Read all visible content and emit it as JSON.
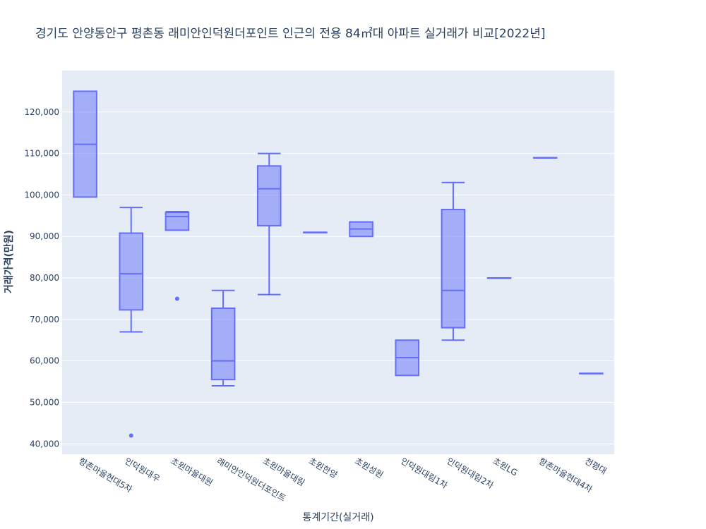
{
  "chart_data": {
    "type": "box",
    "title": "경기도 안양동안구 평촌동 래미안인덕원더포인트 인근의 전용 84㎡대 아파트 실거래가 비교[2022년]",
    "xlabel": "통계기간(실거래)",
    "ylabel": "거래가격(만원)",
    "ylim": [
      37500,
      130000
    ],
    "yticks": [
      40000,
      50000,
      60000,
      70000,
      80000,
      90000,
      100000,
      110000,
      120000
    ],
    "ytick_labels": [
      "40,000",
      "50,000",
      "60,000",
      "70,000",
      "80,000",
      "90,000",
      "100,000",
      "110,000",
      "120,000"
    ],
    "grid": true,
    "color": "#636efa",
    "fill": "rgba(99,110,250,0.5)",
    "background": "#e5ecf6",
    "boxes": [
      {
        "category": "향촌마을현대5차",
        "min": 99500,
        "q1": 99500,
        "median": 112200,
        "q3": 125000,
        "max": 125000,
        "outliers": []
      },
      {
        "category": "인덕원대우",
        "min": 67000,
        "q1": 72300,
        "median": 81000,
        "q3": 90800,
        "max": 97000,
        "outliers": [
          42000
        ]
      },
      {
        "category": "초원마을대원",
        "min": 91500,
        "q1": 91500,
        "median": 94800,
        "q3": 95800,
        "max": 96000,
        "outliers": [
          75000
        ]
      },
      {
        "category": "래미안인덕원더포인트",
        "min": 54000,
        "q1": 55500,
        "median": 60000,
        "q3": 72700,
        "max": 77000,
        "outliers": []
      },
      {
        "category": "초원마을대림",
        "min": 76000,
        "q1": 92600,
        "median": 101500,
        "q3": 107000,
        "max": 110000,
        "outliers": []
      },
      {
        "category": "초원한양",
        "min": 91000,
        "q1": 91000,
        "median": 91000,
        "q3": 91000,
        "max": 91000,
        "outliers": []
      },
      {
        "category": "초원성원",
        "min": 90000,
        "q1": 90000,
        "median": 91800,
        "q3": 93500,
        "max": 93500,
        "outliers": []
      },
      {
        "category": "인덕원대림1차",
        "min": 56500,
        "q1": 56500,
        "median": 60800,
        "q3": 65000,
        "max": 65000,
        "outliers": []
      },
      {
        "category": "인덕원대림2차",
        "min": 65000,
        "q1": 68000,
        "median": 77000,
        "q3": 96500,
        "max": 103000,
        "outliers": []
      },
      {
        "category": "초원LG",
        "min": 80000,
        "q1": 80000,
        "median": 80000,
        "q3": 80000,
        "max": 80000,
        "outliers": []
      },
      {
        "category": "향촌마을현대4차",
        "min": 109000,
        "q1": 109000,
        "median": 109000,
        "q3": 109000,
        "max": 109000,
        "outliers": []
      },
      {
        "category": "천평대",
        "min": 57000,
        "q1": 57000,
        "median": 57000,
        "q3": 57000,
        "max": 57000,
        "outliers": []
      }
    ]
  }
}
